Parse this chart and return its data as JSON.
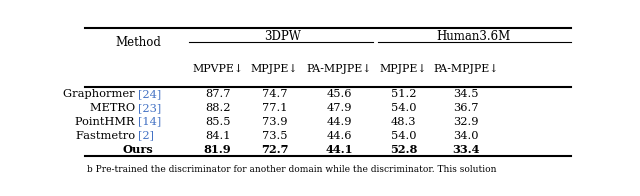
{
  "title_3dpw": "3DPW",
  "title_human": "Human3.6M",
  "col_headers": [
    "MPVPE↓",
    "MPJPE↓",
    "PA-MPJPE↓",
    "MPJPE↓",
    "PA-MPJPE↓"
  ],
  "method_col": "Method",
  "methods": [
    "Graphormer",
    "METRO",
    "PointHMR",
    "Fastmetro",
    "Ours"
  ],
  "citations": [
    "[24]",
    "[23]",
    "[14]",
    "[2]",
    ""
  ],
  "data": [
    [
      "87.7",
      "74.7",
      "45.6",
      "51.2",
      "34.5"
    ],
    [
      "88.2",
      "77.1",
      "47.9",
      "54.0",
      "36.7"
    ],
    [
      "85.5",
      "73.9",
      "44.9",
      "48.3",
      "32.9"
    ],
    [
      "84.1",
      "73.5",
      "44.6",
      "54.0",
      "34.0"
    ],
    [
      "81.9",
      "72.7",
      "44.1",
      "52.8",
      "33.4"
    ]
  ],
  "bold_row": 4,
  "citation_color": "#4472c4",
  "caption": "b Pre-trained the discriminator for another domain while the discriminator. This solution"
}
